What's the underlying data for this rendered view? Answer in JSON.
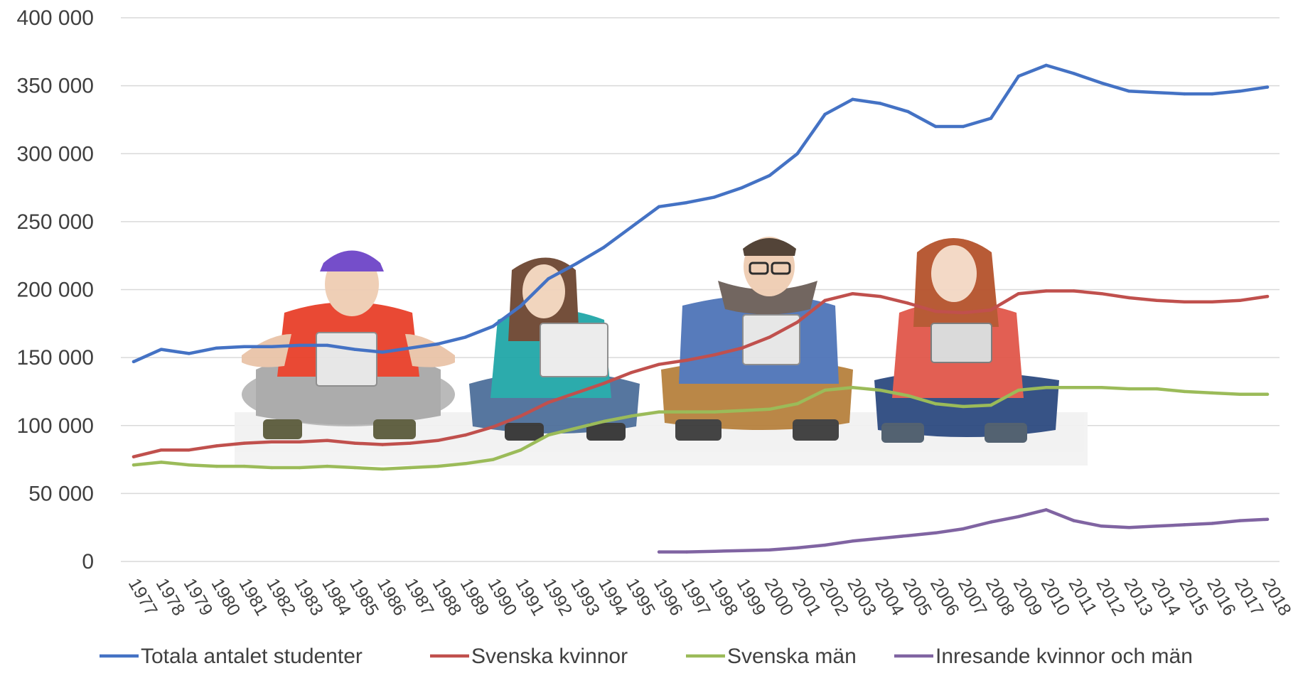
{
  "chart_data": {
    "type": "line",
    "title": "",
    "xlabel": "",
    "ylabel": "",
    "ylim": [
      0,
      400000
    ],
    "y_ticks": [
      0,
      50000,
      100000,
      150000,
      200000,
      250000,
      300000,
      350000,
      400000
    ],
    "y_tick_labels": [
      "0",
      "50 000",
      "100 000",
      "150 000",
      "200 000",
      "250 000",
      "300 000",
      "350 000",
      "400 000"
    ],
    "grid": true,
    "legend_position": "bottom",
    "categories": [
      "1977",
      "1978",
      "1979",
      "1980",
      "1981",
      "1982",
      "1983",
      "1984",
      "1985",
      "1986",
      "1987",
      "1988",
      "1989",
      "1990",
      "1991",
      "1992",
      "1993",
      "1994",
      "1995",
      "1996",
      "1997",
      "1998",
      "1999",
      "2000",
      "2001",
      "2002",
      "2003",
      "2004",
      "2005",
      "2006",
      "2007",
      "2008",
      "2009",
      "2010",
      "2011",
      "2012",
      "2013",
      "2014",
      "2015",
      "2016",
      "2017",
      "2018"
    ],
    "series": [
      {
        "name": "Totala antalet studenter",
        "color": "#4472c4",
        "values": [
          147000,
          156000,
          153000,
          157000,
          158000,
          158000,
          159000,
          159000,
          156000,
          154000,
          157000,
          160000,
          165000,
          173000,
          188000,
          208000,
          219000,
          231000,
          246000,
          261000,
          264000,
          268000,
          275000,
          284000,
          300000,
          329000,
          340000,
          337000,
          331000,
          320000,
          320000,
          326000,
          357000,
          365000,
          359000,
          352000,
          346000,
          345000,
          344000,
          344000,
          346000,
          349000
        ]
      },
      {
        "name": "Svenska kvinnor",
        "color": "#c0504d",
        "values": [
          77000,
          82000,
          82000,
          85000,
          87000,
          88000,
          88000,
          89000,
          87000,
          86000,
          87000,
          89000,
          93000,
          99000,
          107000,
          117000,
          124000,
          131000,
          139000,
          145000,
          148000,
          152000,
          157000,
          165000,
          176000,
          192000,
          197000,
          195000,
          190000,
          184000,
          183000,
          185000,
          197000,
          199000,
          199000,
          197000,
          194000,
          192000,
          191000,
          191000,
          192000,
          195000
        ]
      },
      {
        "name": "Svenska män",
        "color": "#9bbb59",
        "values": [
          71000,
          73000,
          71000,
          70000,
          70000,
          69000,
          69000,
          70000,
          69000,
          68000,
          69000,
          70000,
          72000,
          75000,
          82000,
          93000,
          98000,
          103000,
          107000,
          110000,
          110000,
          110000,
          111000,
          112000,
          116000,
          126000,
          128000,
          126000,
          122000,
          116000,
          114000,
          115000,
          126000,
          128000,
          128000,
          128000,
          127000,
          127000,
          125000,
          124000,
          123000,
          123000
        ]
      },
      {
        "name": "Inresande kvinnor och män",
        "color": "#8064a2",
        "values": [
          null,
          null,
          null,
          null,
          null,
          null,
          null,
          null,
          null,
          null,
          null,
          null,
          null,
          null,
          null,
          null,
          null,
          null,
          null,
          7000,
          7000,
          7500,
          8000,
          8500,
          10000,
          12000,
          15000,
          17000,
          19000,
          21000,
          24000,
          29000,
          33000,
          38000,
          30000,
          26000,
          25000,
          26000,
          27000,
          28000,
          30000,
          31000
        ]
      }
    ]
  }
}
